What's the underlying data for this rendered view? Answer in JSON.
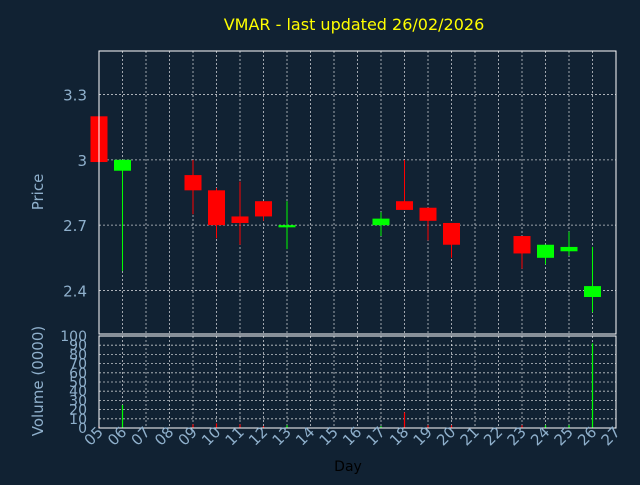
{
  "chart_data": {
    "type": "candlestick",
    "title": "VMAR - last updated 26/02/2026",
    "xlabel": "Day",
    "x_ticks": [
      "05",
      "06",
      "07",
      "08",
      "09",
      "10",
      "11",
      "12",
      "13",
      "14",
      "15",
      "16",
      "17",
      "18",
      "19",
      "20",
      "21",
      "22",
      "23",
      "24",
      "25",
      "26",
      "27"
    ],
    "price_panel": {
      "ylabel": "Price",
      "ylim": [
        2.2,
        3.5
      ],
      "y_ticks": [
        2.4,
        2.7,
        3,
        3.3
      ],
      "y_tick_labels": [
        "2.4",
        "2.7",
        "3",
        "3.3"
      ],
      "grid": true,
      "candles": [
        {
          "day": "05",
          "open": 3.2,
          "close": 2.99,
          "high": 3.2,
          "low": 2.99
        },
        {
          "day": "06",
          "open": 2.95,
          "close": 3.0,
          "high": 3.0,
          "low": 2.49
        },
        {
          "day": "09",
          "open": 2.93,
          "close": 2.86,
          "high": 3.0,
          "low": 2.75
        },
        {
          "day": "10",
          "open": 2.86,
          "close": 2.7,
          "high": 2.87,
          "low": 2.64
        },
        {
          "day": "11",
          "open": 2.74,
          "close": 2.71,
          "high": 2.9,
          "low": 2.61
        },
        {
          "day": "12",
          "open": 2.81,
          "close": 2.74,
          "high": 2.81,
          "low": 2.72
        },
        {
          "day": "13",
          "open": 2.69,
          "close": 2.7,
          "high": 2.81,
          "low": 2.59
        },
        {
          "day": "17",
          "open": 2.7,
          "close": 2.73,
          "high": 2.76,
          "low": 2.65
        },
        {
          "day": "18",
          "open": 2.81,
          "close": 2.77,
          "high": 3.0,
          "low": 2.77
        },
        {
          "day": "19",
          "open": 2.78,
          "close": 2.72,
          "high": 2.78,
          "low": 2.63
        },
        {
          "day": "20",
          "open": 2.71,
          "close": 2.61,
          "high": 2.71,
          "low": 2.55
        },
        {
          "day": "23",
          "open": 2.65,
          "close": 2.57,
          "high": 2.65,
          "low": 2.5
        },
        {
          "day": "24",
          "open": 2.55,
          "close": 2.61,
          "high": 2.61,
          "low": 2.52
        },
        {
          "day": "25",
          "open": 2.58,
          "close": 2.6,
          "high": 2.67,
          "low": 2.56
        },
        {
          "day": "26",
          "open": 2.37,
          "close": 2.42,
          "high": 2.6,
          "low": 2.3
        }
      ]
    },
    "volume_panel": {
      "ylabel": "Volume (0000)",
      "ylim": [
        0,
        100
      ],
      "y_ticks": [
        0,
        10,
        20,
        30,
        40,
        50,
        60,
        70,
        80,
        90,
        100
      ],
      "y_tick_labels": [
        "0",
        "10",
        "20",
        "30",
        "40",
        "50",
        "60",
        "70",
        "80",
        "90",
        "100"
      ],
      "grid": true,
      "bars": [
        {
          "day": "05",
          "value": 2,
          "direction": "down"
        },
        {
          "day": "06",
          "value": 25,
          "direction": "up"
        },
        {
          "day": "09",
          "value": 4,
          "direction": "down"
        },
        {
          "day": "10",
          "value": 5,
          "direction": "down"
        },
        {
          "day": "11",
          "value": 4,
          "direction": "down"
        },
        {
          "day": "12",
          "value": 2,
          "direction": "down"
        },
        {
          "day": "13",
          "value": 3,
          "direction": "up"
        },
        {
          "day": "17",
          "value": 2,
          "direction": "up"
        },
        {
          "day": "18",
          "value": 17,
          "direction": "down"
        },
        {
          "day": "19",
          "value": 3,
          "direction": "down"
        },
        {
          "day": "20",
          "value": 3,
          "direction": "down"
        },
        {
          "day": "23",
          "value": 3,
          "direction": "down"
        },
        {
          "day": "24",
          "value": 3,
          "direction": "up"
        },
        {
          "day": "25",
          "value": 3,
          "direction": "up"
        },
        {
          "day": "26",
          "value": 92,
          "direction": "up"
        }
      ]
    },
    "colors": {
      "background": "#112233",
      "title": "#ffff00",
      "text": "#8fb0cc",
      "axis_label": "#000000",
      "frame": "#ffffff",
      "grid": "#ffffff",
      "up": "#00ff00",
      "down": "#ff0000"
    }
  }
}
